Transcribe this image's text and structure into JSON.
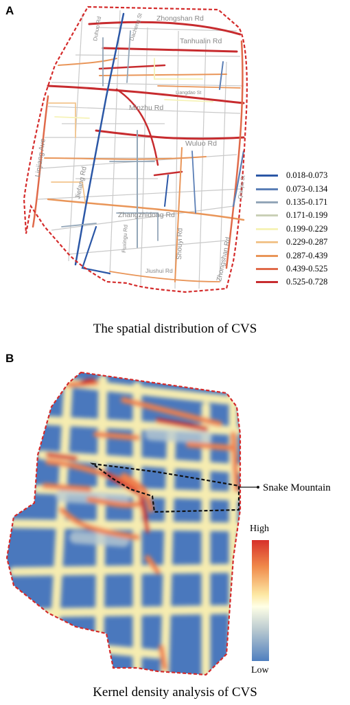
{
  "panelA": {
    "letter": "A",
    "caption": "The spatial distribution of CVS",
    "roads": {
      "zhongshan_top": "Zhongshan Rd",
      "tanhualin": "Tanhualin Rd",
      "minzhu": "Minzhu Rd",
      "wuluo": "Wuluo Rd",
      "linjiang": "Linjiang Ave",
      "jiefang": "Jiefang Rd",
      "zhangzhidong": "Zhangzhidong Rd",
      "shouyi": "Shouyi Rd",
      "zhongshan_right": "Zhongshan Rd",
      "jiushui": "Jiushui Rd",
      "liangdao": "Liangdao St",
      "dacheng": "Dacheng St",
      "duhuo": "Duhuo Rd",
      "qiaojia": "Qiaojia St",
      "fuxingu": "Fuxingu Rd"
    },
    "legend": [
      {
        "label": "0.018-0.073",
        "color": "#2b57a6"
      },
      {
        "label": "0.073-0.134",
        "color": "#5b7fb6"
      },
      {
        "label": "0.135-0.171",
        "color": "#93a6b8"
      },
      {
        "label": "0.171-0.199",
        "color": "#c9d0b6"
      },
      {
        "label": "0.199-0.229",
        "color": "#f6f3b8"
      },
      {
        "label": "0.229-0.287",
        "color": "#f2c48c"
      },
      {
        "label": "0.287-0.439",
        "color": "#e99558"
      },
      {
        "label": "0.439-0.525",
        "color": "#e06a4a"
      },
      {
        "label": "0.525-0.728",
        "color": "#c72b2e"
      }
    ]
  },
  "panelB": {
    "letter": "B",
    "caption": "Kernel density analysis of CVS",
    "annotation": "Snake Mountain",
    "legend": {
      "high": "High",
      "low": "Low"
    }
  },
  "colors": {
    "boundary": "#d42a2a",
    "low": "#4a78bd",
    "high": "#d7302a"
  }
}
